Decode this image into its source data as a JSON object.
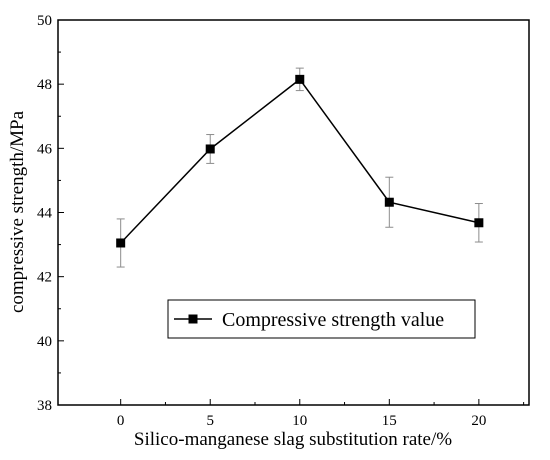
{
  "chart_data": {
    "type": "line",
    "title": "",
    "xlabel": "Silico-manganese slag substitution rate/%",
    "ylabel": "compressive strength/MPa",
    "x": [
      0,
      5,
      10,
      15,
      20
    ],
    "xticks": [
      "0",
      "5",
      "10",
      "15",
      "20"
    ],
    "yticks": [
      "38",
      "40",
      "42",
      "44",
      "46",
      "48",
      "50"
    ],
    "xlim": [
      -3.5,
      22.8
    ],
    "ylim": [
      38,
      50
    ],
    "grid": false,
    "legend_position": "lower-center",
    "series": [
      {
        "name": "Compressive strength value",
        "values": [
          43.05,
          45.98,
          48.15,
          44.32,
          43.68
        ],
        "error": [
          0.75,
          0.45,
          0.35,
          0.78,
          0.6
        ],
        "marker": "square",
        "color": "#000000",
        "errorbar_color": "#8c8c8c"
      }
    ]
  }
}
